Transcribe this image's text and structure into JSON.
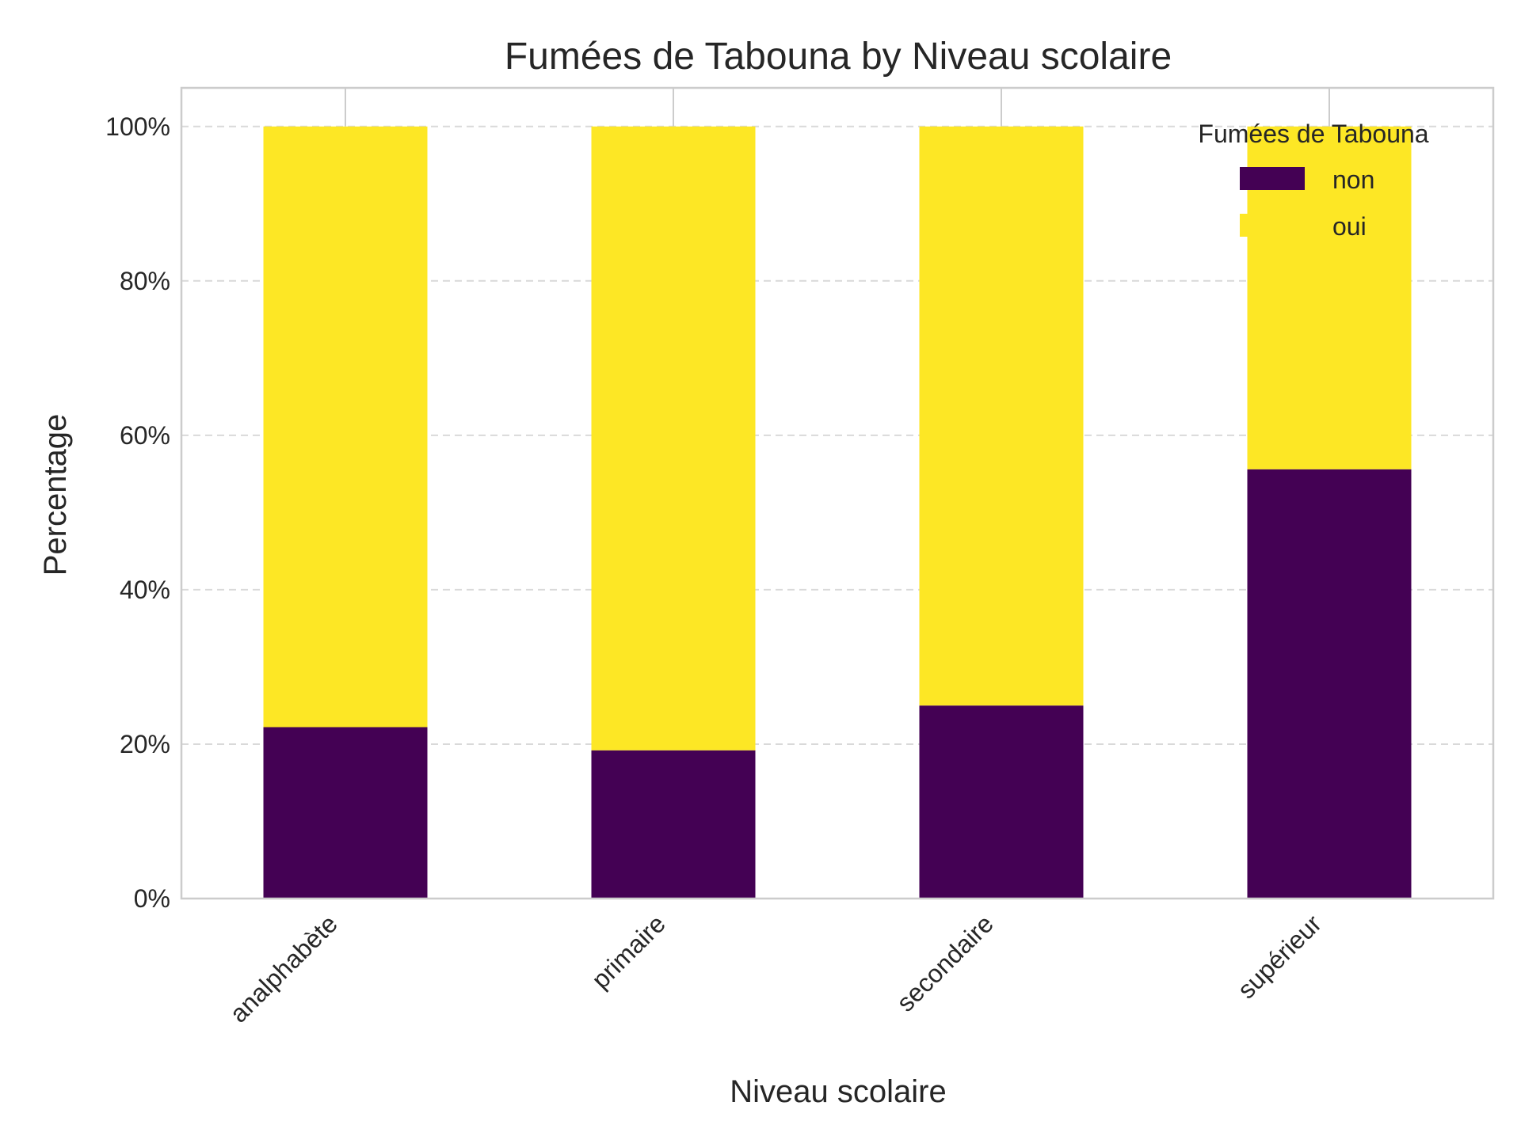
{
  "chart_data": {
    "type": "bar",
    "stacked": true,
    "title": "Fumées de Tabouna by Niveau scolaire",
    "xlabel": "Niveau scolaire",
    "ylabel": "Percentage",
    "ylim": [
      0,
      105
    ],
    "yticks": [
      0,
      20,
      40,
      60,
      80,
      100
    ],
    "ytick_labels": [
      "0%",
      "20%",
      "40%",
      "60%",
      "80%",
      "100%"
    ],
    "categories": [
      "analphabète",
      "primaire",
      "secondaire",
      "supérieur"
    ],
    "series": [
      {
        "name": "non",
        "values": [
          22.2,
          19.2,
          25.0,
          55.6
        ],
        "color": "#440154"
      },
      {
        "name": "oui",
        "values": [
          77.8,
          80.8,
          75.0,
          44.4
        ],
        "color": "#fde725"
      }
    ],
    "legend": {
      "title": "Fumées de Tabouna",
      "position": "top-right"
    },
    "grid": true
  }
}
